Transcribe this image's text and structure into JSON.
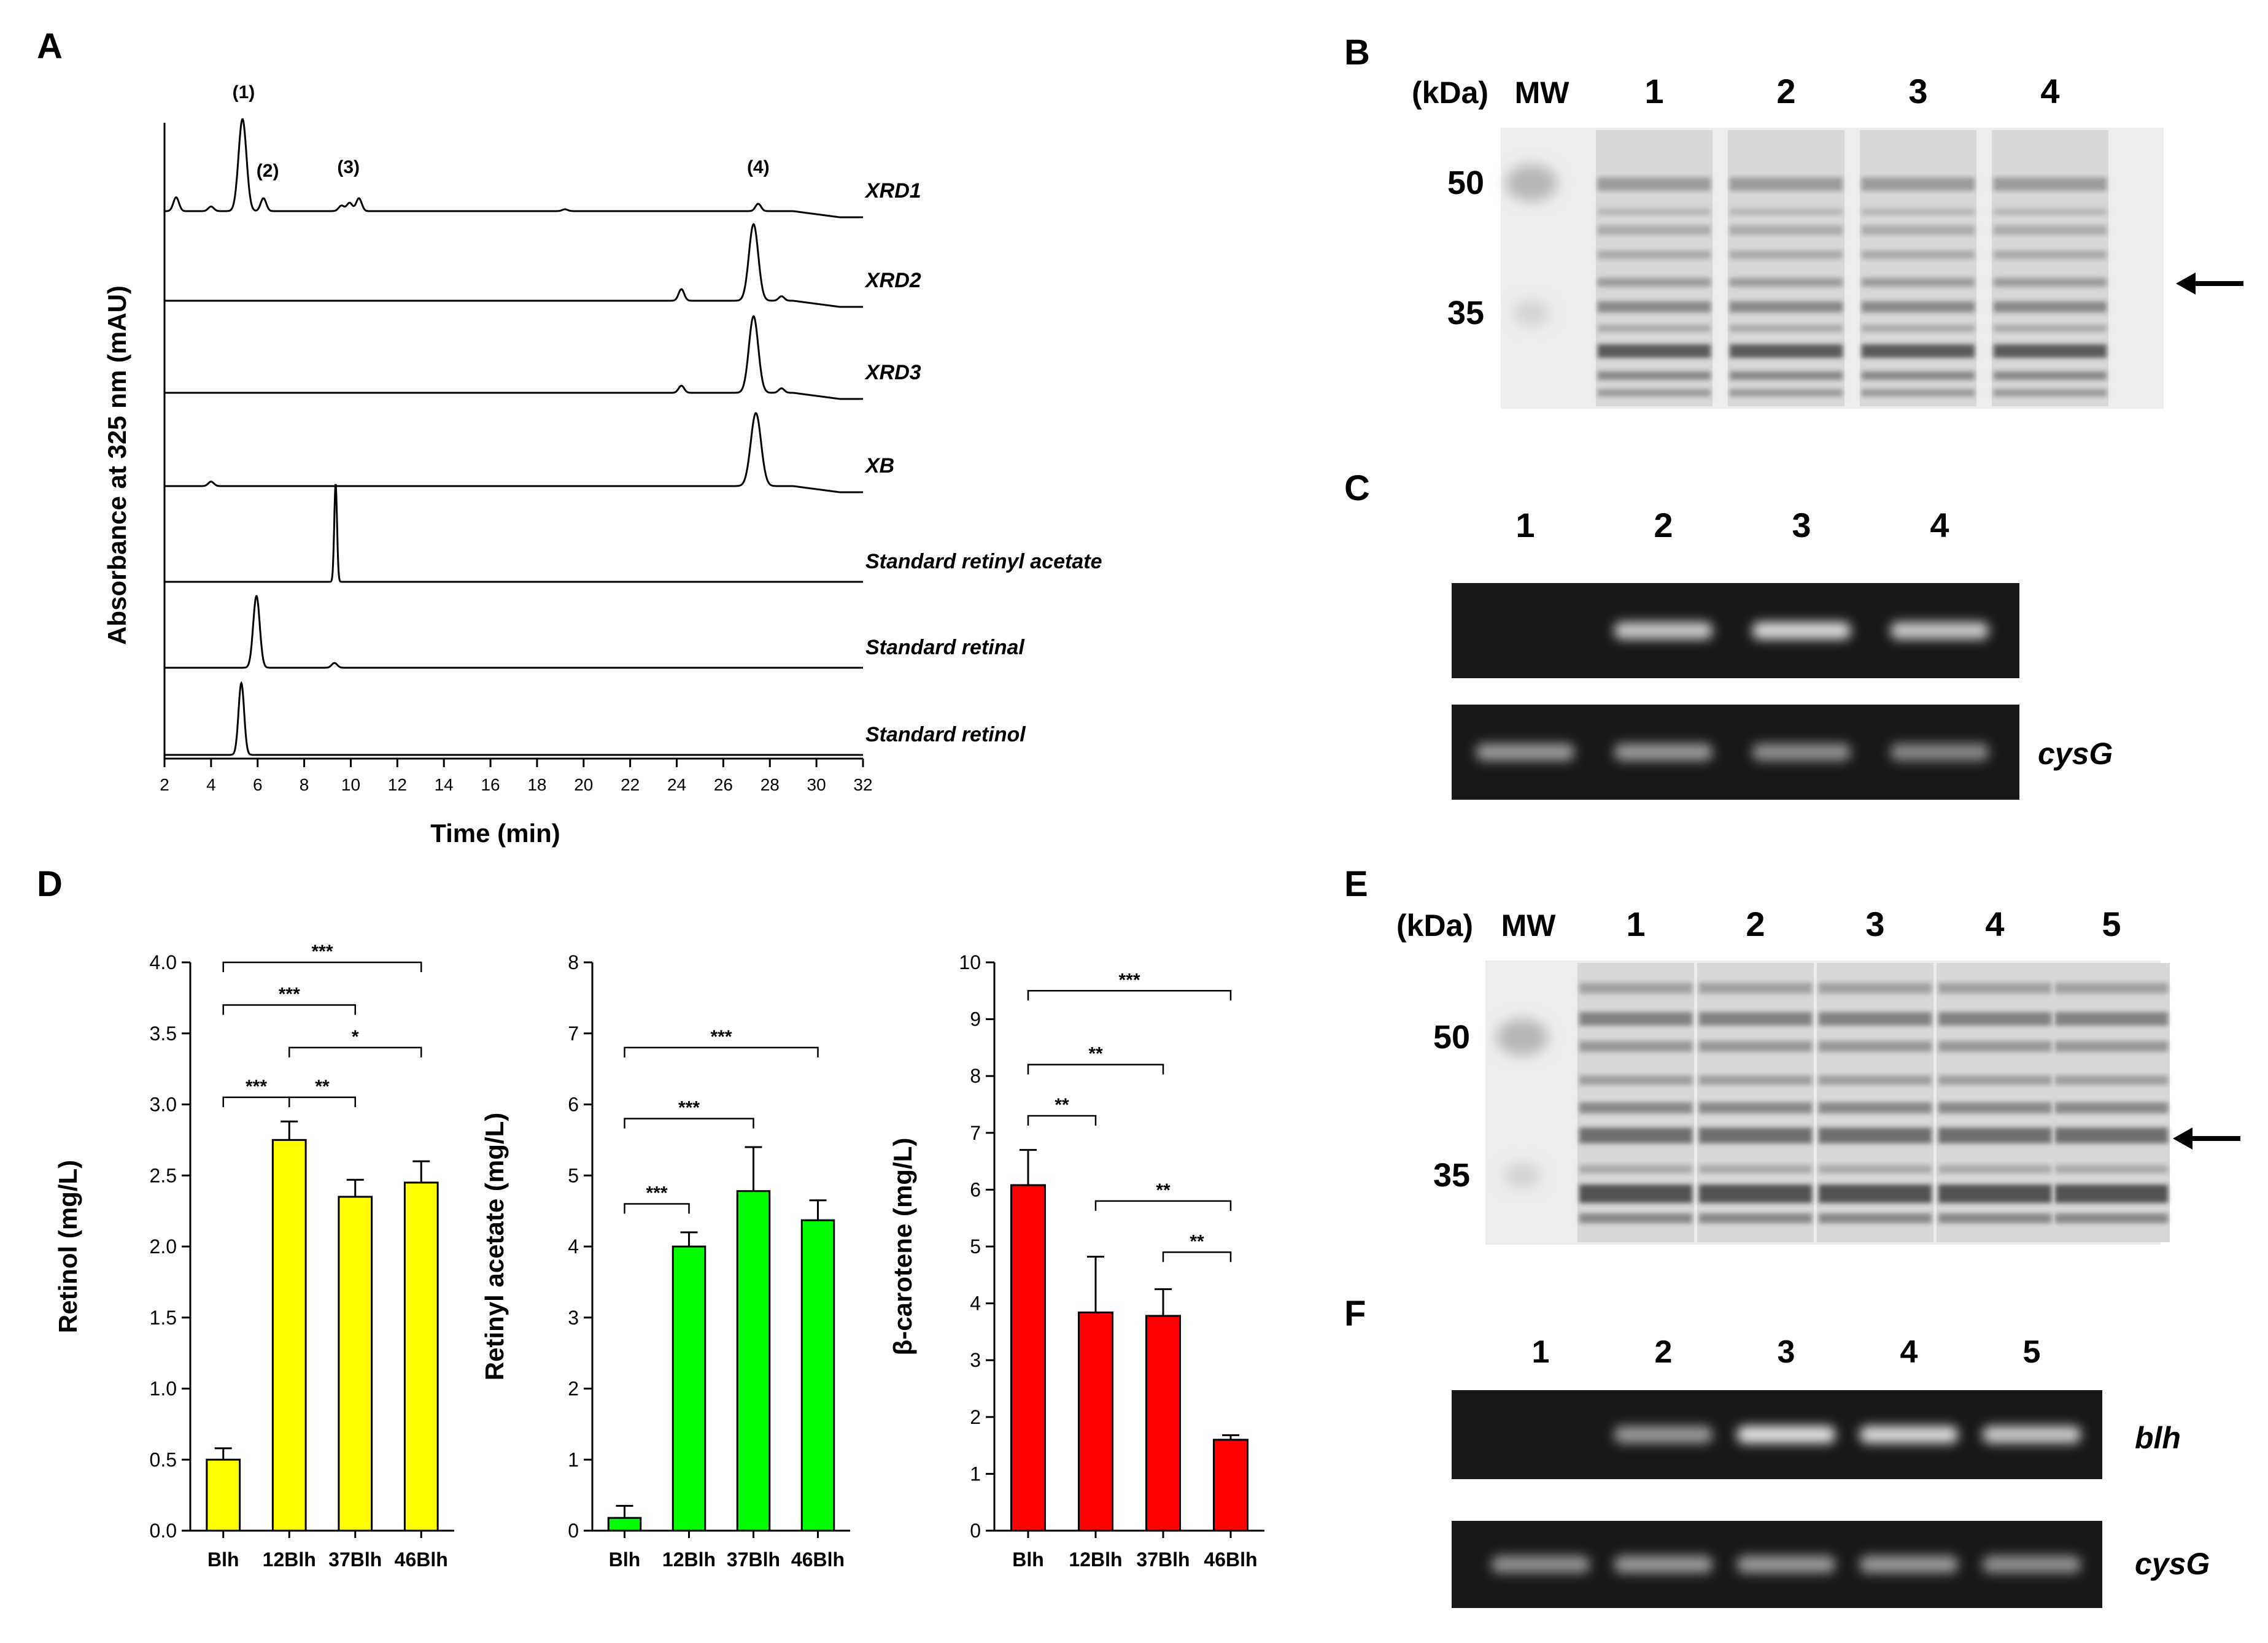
{
  "panels": {
    "A": "A",
    "B": "B",
    "C": "C",
    "D": "D",
    "E": "E",
    "F": "F"
  },
  "chart_data": [
    {
      "type": "line",
      "panel": "A",
      "xlabel": "Time (min)",
      "ylabel": "Absorbance at 325 nm (mAU)",
      "xlim": [
        2,
        32
      ],
      "xticks": [
        2,
        4,
        6,
        8,
        10,
        12,
        14,
        16,
        18,
        20,
        22,
        24,
        26,
        28,
        30,
        32
      ],
      "peak_labels": [
        {
          "label": "(1)",
          "x": 5.4
        },
        {
          "label": "(2)",
          "x": 6.3
        },
        {
          "label": "(3)",
          "x": 9.9
        },
        {
          "label": "(4)",
          "x": 27.5
        }
      ],
      "series": [
        {
          "name": "XRD1",
          "peaks": [
            {
              "x": 2.5,
              "h": 0.15
            },
            {
              "x": 4.0,
              "h": 0.05
            },
            {
              "x": 5.35,
              "h": 1.0
            },
            {
              "x": 6.25,
              "h": 0.14
            },
            {
              "x": 9.6,
              "h": 0.06
            },
            {
              "x": 9.95,
              "h": 0.09
            },
            {
              "x": 10.35,
              "h": 0.14
            },
            {
              "x": 19.2,
              "h": 0.02
            },
            {
              "x": 27.5,
              "h": 0.08
            }
          ]
        },
        {
          "name": "XRD2",
          "peaks": [
            {
              "x": 24.2,
              "h": 0.13
            },
            {
              "x": 27.3,
              "h": 0.86
            },
            {
              "x": 28.5,
              "h": 0.05
            }
          ]
        },
        {
          "name": "XRD3",
          "peaks": [
            {
              "x": 24.2,
              "h": 0.08
            },
            {
              "x": 27.3,
              "h": 0.86
            },
            {
              "x": 28.5,
              "h": 0.05
            }
          ]
        },
        {
          "name": "XB",
          "peaks": [
            {
              "x": 4.0,
              "h": 0.05
            },
            {
              "x": 27.4,
              "h": 0.82
            }
          ]
        },
        {
          "name": "Standard retinyl acetate",
          "peaks": [
            {
              "x": 9.35,
              "h": 1.0
            }
          ]
        },
        {
          "name": "Standard retinal",
          "peaks": [
            {
              "x": 5.95,
              "h": 0.9
            },
            {
              "x": 9.3,
              "h": 0.06
            }
          ]
        },
        {
          "name": "Standard retinol",
          "peaks": [
            {
              "x": 5.3,
              "h": 0.9
            }
          ]
        }
      ]
    },
    {
      "type": "bar",
      "panel": "D",
      "categories": [
        "Blh",
        "12Blh",
        "37Blh",
        "46Blh"
      ],
      "ylabel": "Retinol (mg/L)",
      "ylim": [
        0,
        4
      ],
      "yticks": [
        "0.0",
        "0.5",
        "1.0",
        "1.5",
        "2.0",
        "2.5",
        "3.0",
        "3.5",
        "4.0"
      ],
      "values": [
        0.5,
        2.75,
        2.35,
        2.45
      ],
      "errors": [
        0.08,
        0.13,
        0.12,
        0.15
      ],
      "color": "#FFFF00",
      "significance": [
        {
          "from": 0,
          "to": 3,
          "label": "***",
          "y": 4.0
        },
        {
          "from": 0,
          "to": 2,
          "label": "***",
          "y": 3.7
        },
        {
          "from": 1,
          "to": 3,
          "label": "*",
          "y": 3.4
        },
        {
          "from": 0,
          "to": 1,
          "label": "***",
          "y": 3.05
        },
        {
          "from": 1,
          "to": 2,
          "label": "**",
          "y": 3.05
        }
      ]
    },
    {
      "type": "bar",
      "panel": "D",
      "categories": [
        "Blh",
        "12Blh",
        "37Blh",
        "46Blh"
      ],
      "ylabel": "Retinyl acetate (mg/L)",
      "ylim": [
        0,
        8
      ],
      "yticks": [
        "0",
        "1",
        "2",
        "3",
        "4",
        "5",
        "6",
        "7",
        "8"
      ],
      "values": [
        0.18,
        4.0,
        4.78,
        4.37
      ],
      "errors": [
        0.17,
        0.2,
        0.62,
        0.28
      ],
      "color": "#00FF00",
      "significance": [
        {
          "from": 0,
          "to": 3,
          "label": "***",
          "y": 6.8
        },
        {
          "from": 0,
          "to": 2,
          "label": "***",
          "y": 5.8
        },
        {
          "from": 0,
          "to": 1,
          "label": "***",
          "y": 4.6
        }
      ]
    },
    {
      "type": "bar",
      "panel": "D",
      "categories": [
        "Blh",
        "12Blh",
        "37Blh",
        "46Blh"
      ],
      "ylabel": "β-carotene (mg/L)",
      "ylim": [
        0,
        10
      ],
      "yticks": [
        "0",
        "1",
        "2",
        "3",
        "4",
        "5",
        "6",
        "7",
        "8",
        "9",
        "10"
      ],
      "values": [
        6.08,
        3.84,
        3.78,
        1.6
      ],
      "errors": [
        0.62,
        0.98,
        0.47,
        0.08
      ],
      "color": "#FF0000",
      "significance": [
        {
          "from": 0,
          "to": 3,
          "label": "***",
          "y": 9.5
        },
        {
          "from": 0,
          "to": 2,
          "label": "**",
          "y": 8.2
        },
        {
          "from": 0,
          "to": 1,
          "label": "**",
          "y": 7.3
        },
        {
          "from": 1,
          "to": 3,
          "label": "**",
          "y": 5.8
        },
        {
          "from": 2,
          "to": 3,
          "label": "**",
          "y": 4.9
        }
      ]
    }
  ],
  "gel_B": {
    "kda_label": "(kDa)",
    "mw_label": "MW",
    "lanes": [
      "1",
      "2",
      "3",
      "4"
    ],
    "markers": [
      "50",
      "35"
    ]
  },
  "gel_C": {
    "lanes": [
      "1",
      "2",
      "3",
      "4"
    ],
    "gene_label": "cysG",
    "top_band_intensity": [
      0.0,
      0.85,
      0.95,
      0.85
    ],
    "bottom_band_intensity": [
      0.55,
      0.55,
      0.5,
      0.45
    ]
  },
  "gel_E": {
    "kda_label": "(kDa)",
    "mw_label": "MW",
    "lanes": [
      "1",
      "2",
      "3",
      "4",
      "5"
    ],
    "markers": [
      "50",
      "35"
    ]
  },
  "gel_F": {
    "lanes": [
      "1",
      "2",
      "3",
      "4",
      "5"
    ],
    "gene_labels": [
      "blh",
      "cysG"
    ],
    "top_band_intensity": [
      0.0,
      0.55,
      1.0,
      0.95,
      0.85
    ],
    "bottom_band_intensity": [
      0.5,
      0.55,
      0.55,
      0.55,
      0.5
    ]
  }
}
